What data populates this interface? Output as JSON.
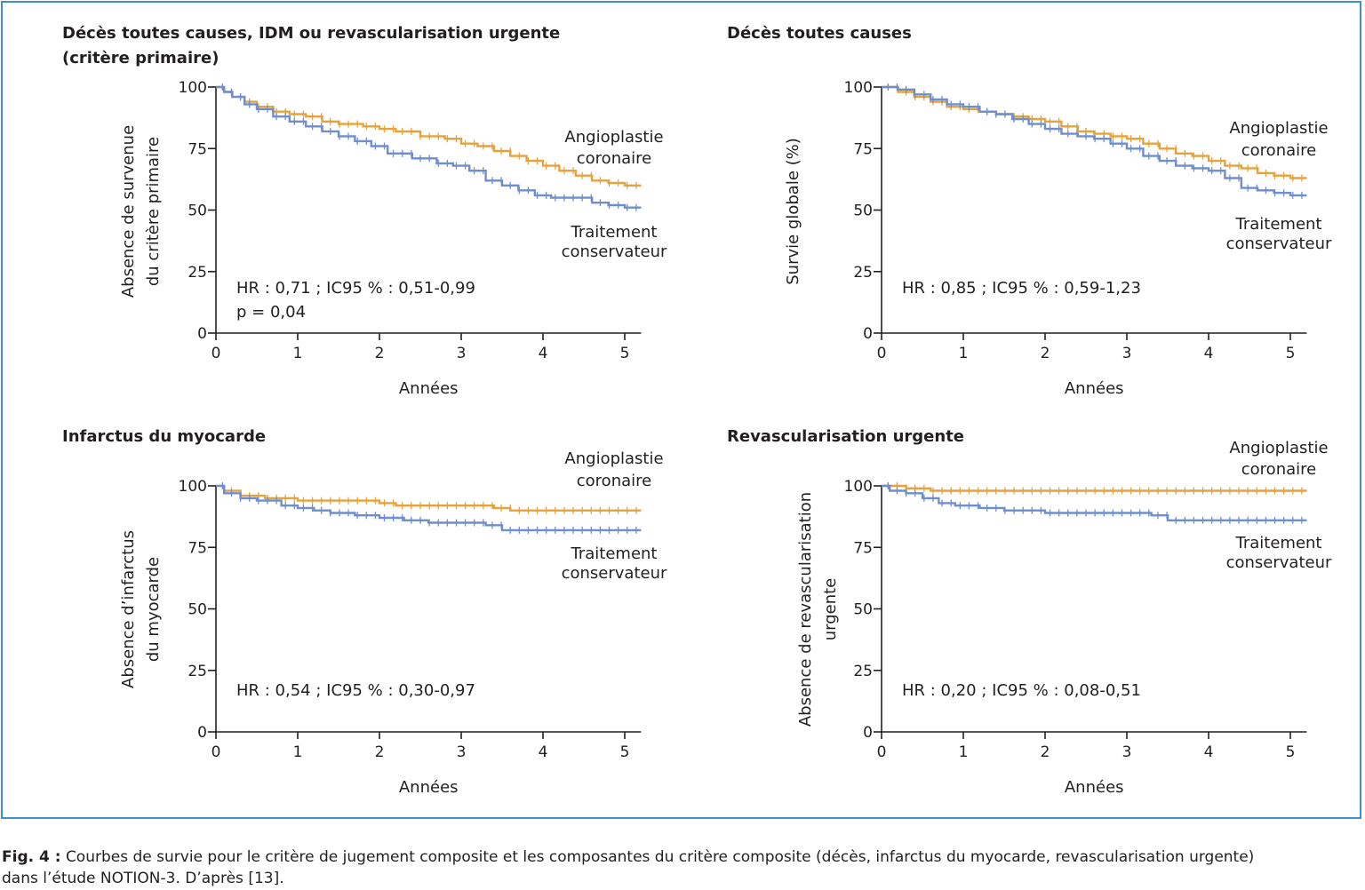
{
  "colors": {
    "frame": "#3f8fd0",
    "angioplasty": "#e5a33c",
    "conservative": "#6e8fcb",
    "axis": "#231f20"
  },
  "caption": {
    "label": "Fig. 4 :",
    "line1": "Courbes de survie pour le critère de jugement composite et les composantes du critère composite (décès, infarctus du myocarde, revascularisation urgente)",
    "line2": "dans l’étude NOTION-3. D’après [13]."
  },
  "chart_data": [
    {
      "type": "line",
      "title_lines": [
        "Décès toutes causes, IDM ou revascularisation urgente",
        "(critère primaire)"
      ],
      "xlabel": "Années",
      "ylabel_lines": [
        "Absence de survenue",
        "du critère primaire"
      ],
      "xlim": [
        0,
        5.2
      ],
      "ylim": [
        0,
        100
      ],
      "xticks": [
        "0",
        "1",
        "2",
        "3",
        "4",
        "5"
      ],
      "yticks": [
        "0",
        "25",
        "50",
        "75",
        "100"
      ],
      "annotation_lines": [
        "HR : 0,71 ; IC95 % : 0,51-0,99",
        "p = 0,04"
      ],
      "series": [
        {
          "name_lines": [
            "Angioplastie",
            "coronaire"
          ],
          "color": "#e5a33c",
          "x": [
            0,
            0.1,
            0.2,
            0.35,
            0.5,
            0.7,
            0.9,
            1.1,
            1.3,
            1.5,
            1.8,
            2.0,
            2.2,
            2.5,
            2.8,
            3.0,
            3.2,
            3.4,
            3.6,
            3.8,
            4.0,
            4.2,
            4.4,
            4.6,
            4.8,
            5.0,
            5.2
          ],
          "y": [
            100,
            98,
            96,
            94,
            92,
            90,
            89,
            88,
            86,
            85,
            84,
            83,
            82,
            80,
            79,
            77,
            76,
            74,
            72,
            70,
            68,
            66,
            64,
            62,
            61,
            60,
            60
          ]
        },
        {
          "name_lines": [
            "Traitement",
            "conservateur"
          ],
          "color": "#6e8fcb",
          "x": [
            0,
            0.1,
            0.2,
            0.35,
            0.5,
            0.7,
            0.9,
            1.1,
            1.3,
            1.5,
            1.7,
            1.9,
            2.1,
            2.4,
            2.7,
            2.9,
            3.1,
            3.3,
            3.5,
            3.7,
            3.9,
            4.1,
            4.4,
            4.6,
            4.8,
            5.0,
            5.2
          ],
          "y": [
            100,
            98,
            96,
            93,
            91,
            88,
            86,
            84,
            82,
            80,
            78,
            76,
            73,
            71,
            69,
            68,
            66,
            62,
            60,
            58,
            56,
            55,
            55,
            53,
            52,
            51,
            51
          ]
        }
      ]
    },
    {
      "type": "line",
      "title_lines": [
        "Décès toutes causes"
      ],
      "xlabel": "Années",
      "ylabel_lines": [
        "Survie globale (%)"
      ],
      "xlim": [
        0,
        5.2
      ],
      "ylim": [
        0,
        100
      ],
      "xticks": [
        "0",
        "1",
        "2",
        "3",
        "4",
        "5"
      ],
      "yticks": [
        "0",
        "25",
        "50",
        "75",
        "100"
      ],
      "annotation_lines": [
        "HR : 0,85 ; IC95 % : 0,59-1,23"
      ],
      "series": [
        {
          "name_lines": [
            "Angioplastie",
            "coronaire"
          ],
          "color": "#e5a33c",
          "x": [
            0,
            0.2,
            0.4,
            0.6,
            0.8,
            1.0,
            1.2,
            1.4,
            1.6,
            1.8,
            2.0,
            2.2,
            2.4,
            2.6,
            2.8,
            3.0,
            3.2,
            3.4,
            3.6,
            3.8,
            4.0,
            4.2,
            4.4,
            4.6,
            4.8,
            5.0,
            5.2
          ],
          "y": [
            100,
            98,
            96,
            94,
            92,
            91,
            90,
            89,
            88,
            87,
            86,
            84,
            82,
            81,
            80,
            79,
            77,
            75,
            73,
            72,
            70,
            68,
            67,
            65,
            64,
            63,
            63
          ]
        },
        {
          "name_lines": [
            "Traitement",
            "conservateur"
          ],
          "color": "#6e8fcb",
          "x": [
            0,
            0.2,
            0.4,
            0.6,
            0.8,
            1.0,
            1.2,
            1.4,
            1.6,
            1.8,
            2.0,
            2.2,
            2.4,
            2.6,
            2.8,
            3.0,
            3.2,
            3.4,
            3.6,
            3.8,
            4.0,
            4.2,
            4.4,
            4.6,
            4.8,
            5.0,
            5.2
          ],
          "y": [
            100,
            99,
            97,
            95,
            93,
            92,
            90,
            89,
            87,
            85,
            83,
            81,
            80,
            79,
            77,
            75,
            72,
            70,
            68,
            67,
            66,
            63,
            59,
            58,
            57,
            56,
            56
          ]
        }
      ]
    },
    {
      "type": "line",
      "title_lines": [
        "Infarctus du myocarde"
      ],
      "xlabel": "Années",
      "ylabel_lines": [
        "Absence d’infarctus",
        "du myocarde"
      ],
      "xlim": [
        0,
        5.2
      ],
      "ylim": [
        0,
        100
      ],
      "xticks": [
        "0",
        "1",
        "2",
        "3",
        "4",
        "5"
      ],
      "yticks": [
        "0",
        "25",
        "50",
        "75",
        "100"
      ],
      "annotation_lines": [
        "HR : 0,54 ; IC95 % : 0,30-0,97"
      ],
      "series": [
        {
          "name_lines": [
            "Angioplastie",
            "coronaire"
          ],
          "color": "#e5a33c",
          "x": [
            0,
            0.1,
            0.3,
            0.6,
            1.0,
            1.5,
            2.0,
            2.2,
            2.6,
            3.0,
            3.4,
            3.6,
            4.0,
            4.4,
            4.8,
            5.2
          ],
          "y": [
            100,
            98,
            96,
            95,
            94,
            94,
            93,
            92,
            92,
            92,
            91,
            90,
            90,
            90,
            90,
            90
          ]
        },
        {
          "name_lines": [
            "Traitement",
            "conservateur"
          ],
          "color": "#6e8fcb",
          "x": [
            0,
            0.1,
            0.3,
            0.5,
            0.8,
            1.0,
            1.2,
            1.4,
            1.7,
            2.0,
            2.3,
            2.6,
            2.9,
            3.1,
            3.3,
            3.5,
            4.0,
            4.5,
            5.2
          ],
          "y": [
            100,
            97,
            95,
            94,
            92,
            91,
            90,
            89,
            88,
            87,
            86,
            85,
            85,
            85,
            84,
            82,
            82,
            82,
            82
          ]
        }
      ]
    },
    {
      "type": "line",
      "title_lines": [
        "Revascularisation urgente"
      ],
      "xlabel": "Années",
      "ylabel_lines": [
        "Absence de revascularisation",
        "urgente"
      ],
      "xlim": [
        0,
        5.2
      ],
      "ylim": [
        0,
        100
      ],
      "xticks": [
        "0",
        "1",
        "2",
        "3",
        "4",
        "5"
      ],
      "yticks": [
        "0",
        "25",
        "50",
        "75",
        "100"
      ],
      "annotation_lines": [
        "HR : 0,20 ; IC95 % : 0,08-0,51"
      ],
      "series": [
        {
          "name_lines": [
            "Angioplastie",
            "coronaire"
          ],
          "color": "#e5a33c",
          "x": [
            0,
            0.3,
            0.6,
            1.0,
            1.5,
            2.0,
            3.0,
            4.0,
            5.2
          ],
          "y": [
            100,
            99,
            98,
            98,
            98,
            98,
            98,
            98,
            98
          ]
        },
        {
          "name_lines": [
            "Traitement",
            "conservateur"
          ],
          "color": "#6e8fcb",
          "x": [
            0,
            0.1,
            0.3,
            0.5,
            0.7,
            0.9,
            1.2,
            1.5,
            1.8,
            2.0,
            2.5,
            3.0,
            3.3,
            3.5,
            4.0,
            4.5,
            5.2
          ],
          "y": [
            100,
            98,
            97,
            95,
            93,
            92,
            91,
            90,
            90,
            89,
            89,
            89,
            88,
            86,
            86,
            86,
            86
          ]
        }
      ]
    }
  ]
}
